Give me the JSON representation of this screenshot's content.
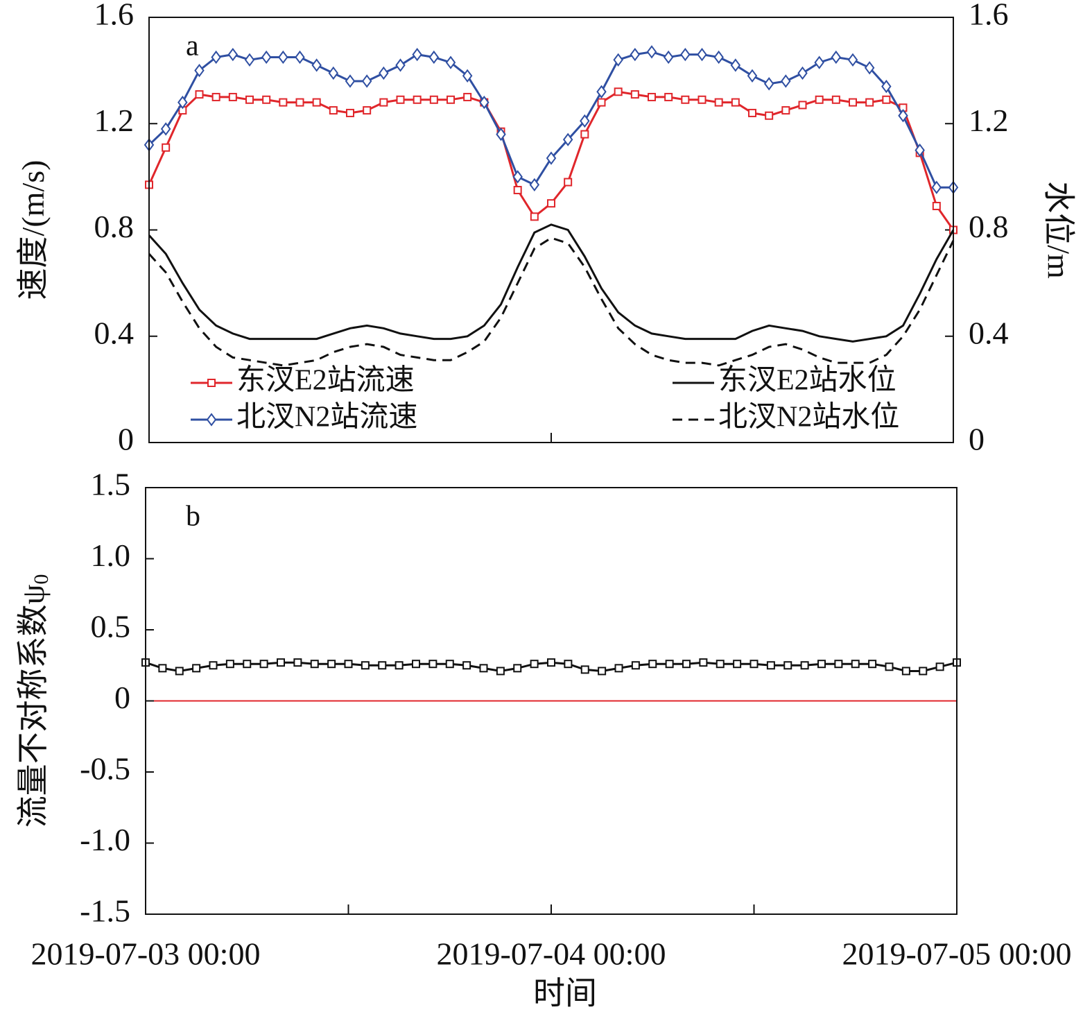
{
  "chart_data": [
    {
      "type": "line",
      "annotation": "a",
      "ylabel": "速度/(m/s)",
      "y2label": "水位/m",
      "x": [
        "2019-07-03 00:00",
        "2019-07-03 01:00",
        "2019-07-03 02:00",
        "2019-07-03 03:00",
        "2019-07-03 04:00",
        "2019-07-03 05:00",
        "2019-07-03 06:00",
        "2019-07-03 07:00",
        "2019-07-03 08:00",
        "2019-07-03 09:00",
        "2019-07-03 10:00",
        "2019-07-03 11:00",
        "2019-07-03 12:00",
        "2019-07-03 13:00",
        "2019-07-03 14:00",
        "2019-07-03 15:00",
        "2019-07-03 16:00",
        "2019-07-03 17:00",
        "2019-07-03 18:00",
        "2019-07-03 19:00",
        "2019-07-03 20:00",
        "2019-07-03 21:00",
        "2019-07-03 22:00",
        "2019-07-03 23:00",
        "2019-07-04 00:00",
        "2019-07-04 01:00",
        "2019-07-04 02:00",
        "2019-07-04 03:00",
        "2019-07-04 04:00",
        "2019-07-04 05:00",
        "2019-07-04 06:00",
        "2019-07-04 07:00",
        "2019-07-04 08:00",
        "2019-07-04 09:00",
        "2019-07-04 10:00",
        "2019-07-04 11:00",
        "2019-07-04 12:00",
        "2019-07-04 13:00",
        "2019-07-04 14:00",
        "2019-07-04 15:00",
        "2019-07-04 16:00",
        "2019-07-04 17:00",
        "2019-07-04 18:00",
        "2019-07-04 19:00",
        "2019-07-04 20:00",
        "2019-07-04 21:00",
        "2019-07-04 22:00",
        "2019-07-04 23:00",
        "2019-07-05 00:00"
      ],
      "xlim": [
        "2019-07-03 00:00",
        "2019-07-05 00:00"
      ],
      "xtick_marks": [
        "2019-07-04 00:00"
      ],
      "ylim": [
        0,
        1.6
      ],
      "yticks": [
        0,
        0.4,
        0.8,
        1.2,
        1.6
      ],
      "y2lim": [
        0,
        1.6
      ],
      "y2ticks": [
        0,
        0.4,
        0.8,
        1.2,
        1.6
      ],
      "legend": true,
      "series": [
        {
          "name": "东汊E2站流速",
          "color": "#e0262b",
          "marker": "square",
          "line_style": "solid",
          "values": [
            0.97,
            1.11,
            1.25,
            1.31,
            1.3,
            1.3,
            1.29,
            1.29,
            1.28,
            1.28,
            1.28,
            1.25,
            1.24,
            1.25,
            1.28,
            1.29,
            1.29,
            1.29,
            1.29,
            1.3,
            1.28,
            1.17,
            0.95,
            0.85,
            0.9,
            0.98,
            1.16,
            1.28,
            1.32,
            1.31,
            1.3,
            1.3,
            1.29,
            1.29,
            1.28,
            1.28,
            1.24,
            1.23,
            1.25,
            1.27,
            1.29,
            1.29,
            1.28,
            1.28,
            1.29,
            1.26,
            1.09,
            0.89,
            0.8
          ]
        },
        {
          "name": "北汊N2站流速",
          "color": "#2f4fa2",
          "marker": "diamond",
          "line_style": "solid",
          "values": [
            1.12,
            1.18,
            1.28,
            1.4,
            1.45,
            1.46,
            1.44,
            1.45,
            1.45,
            1.45,
            1.42,
            1.39,
            1.36,
            1.36,
            1.39,
            1.42,
            1.46,
            1.45,
            1.43,
            1.38,
            1.28,
            1.16,
            1.0,
            0.97,
            1.07,
            1.14,
            1.21,
            1.32,
            1.44,
            1.46,
            1.47,
            1.45,
            1.46,
            1.46,
            1.45,
            1.42,
            1.38,
            1.35,
            1.36,
            1.39,
            1.43,
            1.45,
            1.44,
            1.41,
            1.34,
            1.23,
            1.1,
            0.96,
            0.96
          ]
        },
        {
          "name": "东汊E2站水位",
          "color": "#111111",
          "marker": null,
          "line_style": "solid",
          "axis": "y2",
          "values": [
            0.78,
            0.71,
            0.6,
            0.5,
            0.44,
            0.41,
            0.39,
            0.39,
            0.39,
            0.39,
            0.39,
            0.41,
            0.43,
            0.44,
            0.43,
            0.41,
            0.4,
            0.39,
            0.39,
            0.4,
            0.44,
            0.52,
            0.66,
            0.79,
            0.82,
            0.8,
            0.7,
            0.58,
            0.49,
            0.44,
            0.41,
            0.4,
            0.39,
            0.39,
            0.39,
            0.39,
            0.42,
            0.44,
            0.43,
            0.42,
            0.4,
            0.39,
            0.38,
            0.39,
            0.4,
            0.44,
            0.56,
            0.69,
            0.8
          ]
        },
        {
          "name": "北汊N2站水位",
          "color": "#111111",
          "marker": null,
          "line_style": "dashed",
          "axis": "y2",
          "values": [
            0.71,
            0.64,
            0.53,
            0.43,
            0.36,
            0.32,
            0.31,
            0.3,
            0.29,
            0.3,
            0.31,
            0.34,
            0.36,
            0.37,
            0.36,
            0.33,
            0.32,
            0.31,
            0.31,
            0.34,
            0.38,
            0.47,
            0.6,
            0.73,
            0.77,
            0.75,
            0.66,
            0.54,
            0.43,
            0.37,
            0.33,
            0.31,
            0.3,
            0.3,
            0.29,
            0.31,
            0.33,
            0.36,
            0.37,
            0.35,
            0.32,
            0.3,
            0.3,
            0.3,
            0.33,
            0.4,
            0.5,
            0.63,
            0.76
          ]
        }
      ]
    },
    {
      "type": "line",
      "annotation": "b",
      "ylabel": "流量不对称系数ψ",
      "ylabel_sub": "0",
      "xlabel": "时间",
      "x": [
        "2019-07-03 00:00",
        "2019-07-03 01:00",
        "2019-07-03 02:00",
        "2019-07-03 03:00",
        "2019-07-03 04:00",
        "2019-07-03 05:00",
        "2019-07-03 06:00",
        "2019-07-03 07:00",
        "2019-07-03 08:00",
        "2019-07-03 09:00",
        "2019-07-03 10:00",
        "2019-07-03 11:00",
        "2019-07-03 12:00",
        "2019-07-03 13:00",
        "2019-07-03 14:00",
        "2019-07-03 15:00",
        "2019-07-03 16:00",
        "2019-07-03 17:00",
        "2019-07-03 18:00",
        "2019-07-03 19:00",
        "2019-07-03 20:00",
        "2019-07-03 21:00",
        "2019-07-03 22:00",
        "2019-07-03 23:00",
        "2019-07-04 00:00",
        "2019-07-04 01:00",
        "2019-07-04 02:00",
        "2019-07-04 03:00",
        "2019-07-04 04:00",
        "2019-07-04 05:00",
        "2019-07-04 06:00",
        "2019-07-04 07:00",
        "2019-07-04 08:00",
        "2019-07-04 09:00",
        "2019-07-04 10:00",
        "2019-07-04 11:00",
        "2019-07-04 12:00",
        "2019-07-04 13:00",
        "2019-07-04 14:00",
        "2019-07-04 15:00",
        "2019-07-04 16:00",
        "2019-07-04 17:00",
        "2019-07-04 18:00",
        "2019-07-04 19:00",
        "2019-07-04 20:00",
        "2019-07-04 21:00",
        "2019-07-04 22:00",
        "2019-07-04 23:00",
        "2019-07-05 00:00"
      ],
      "xlim": [
        "2019-07-03 00:00",
        "2019-07-05 00:00"
      ],
      "xticks": [
        "2019-07-03 00:00",
        "2019-07-04 00:00",
        "2019-07-05 00:00"
      ],
      "xtick_marks": [
        "2019-07-03 12:00",
        "2019-07-04 12:00"
      ],
      "ylim": [
        -1.5,
        1.5
      ],
      "yticks": [
        -1.5,
        {
          "value": -1,
          "label": "-1.0"
        },
        -0.5,
        0,
        0.5,
        {
          "value": 1,
          "label": "1.0"
        },
        1.5
      ],
      "hline": {
        "value": 0,
        "color": "#e0262b"
      },
      "series": [
        {
          "color": "#111111",
          "marker": "square",
          "line_style": "solid",
          "values": [
            0.27,
            0.23,
            0.21,
            0.23,
            0.25,
            0.26,
            0.26,
            0.26,
            0.27,
            0.27,
            0.26,
            0.26,
            0.26,
            0.25,
            0.25,
            0.25,
            0.26,
            0.26,
            0.26,
            0.25,
            0.23,
            0.21,
            0.23,
            0.26,
            0.27,
            0.26,
            0.22,
            0.21,
            0.23,
            0.25,
            0.26,
            0.26,
            0.26,
            0.27,
            0.26,
            0.26,
            0.26,
            0.25,
            0.25,
            0.25,
            0.26,
            0.26,
            0.26,
            0.26,
            0.24,
            0.21,
            0.21,
            0.24,
            0.27
          ]
        }
      ]
    }
  ]
}
